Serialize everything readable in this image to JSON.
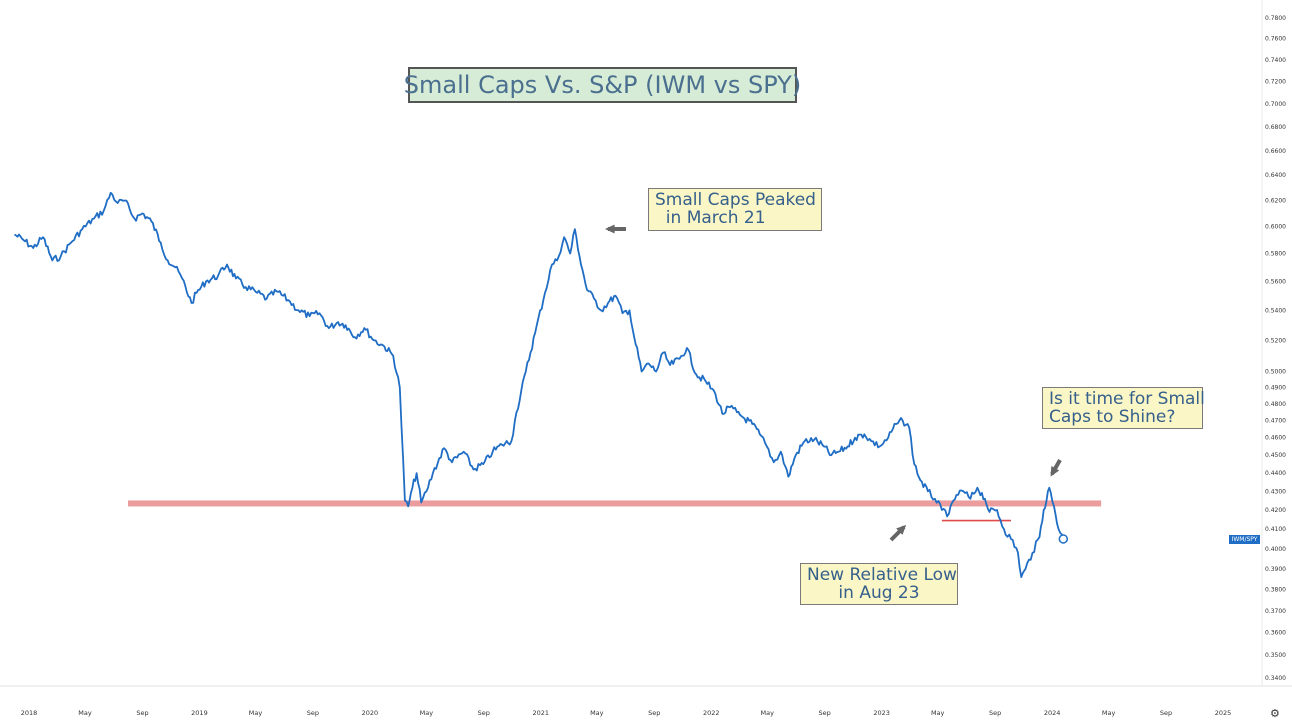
{
  "chart_data": {
    "type": "line",
    "title": "Small Caps Vs. S&P (IWM vs SPY)",
    "ticker_label": "IWM/SPY",
    "y_ticks": [
      "0.3400",
      "0.3500",
      "0.3600",
      "0.3700",
      "0.3800",
      "0.3900",
      "0.4000",
      "0.4100",
      "0.4200",
      "0.4300",
      "0.4400",
      "0.4500",
      "0.4600",
      "0.4700",
      "0.4800",
      "0.4900",
      "0.5000",
      "0.5200",
      "0.5400",
      "0.5600",
      "0.5800",
      "0.6000",
      "0.6200",
      "0.6400",
      "0.6600",
      "0.6800",
      "0.7000",
      "0.7200",
      "0.7400",
      "0.7600",
      "0.7800"
    ],
    "x_ticks": [
      {
        "label": "2018",
        "date": "2018-01-01"
      },
      {
        "label": "May",
        "date": "2018-05-01"
      },
      {
        "label": "Sep",
        "date": "2018-09-01"
      },
      {
        "label": "2019",
        "date": "2019-01-01"
      },
      {
        "label": "May",
        "date": "2019-05-01"
      },
      {
        "label": "Sep",
        "date": "2019-09-01"
      },
      {
        "label": "2020",
        "date": "2020-01-01"
      },
      {
        "label": "May",
        "date": "2020-05-01"
      },
      {
        "label": "Sep",
        "date": "2020-09-01"
      },
      {
        "label": "2021",
        "date": "2021-01-01"
      },
      {
        "label": "May",
        "date": "2021-05-01"
      },
      {
        "label": "Sep",
        "date": "2021-09-01"
      },
      {
        "label": "2022",
        "date": "2022-01-01"
      },
      {
        "label": "May",
        "date": "2022-05-01"
      },
      {
        "label": "Sep",
        "date": "2022-09-01"
      },
      {
        "label": "2023",
        "date": "2023-01-01"
      },
      {
        "label": "May",
        "date": "2023-05-01"
      },
      {
        "label": "Sep",
        "date": "2023-09-01"
      },
      {
        "label": "2024",
        "date": "2024-01-01"
      },
      {
        "label": "May",
        "date": "2024-05-01"
      },
      {
        "label": "Sep",
        "date": "2024-09-01"
      },
      {
        "label": "2025",
        "date": "2025-01-01"
      }
    ],
    "x_range": [
      "2018-01-01",
      "2025-01-01"
    ],
    "y_scale": "log",
    "series": [
      {
        "color": "#1f6dc4",
        "points": [
          [
            "2017-12-01",
            0.594
          ],
          [
            "2017-12-20",
            0.59
          ],
          [
            "2018-01-10",
            0.584
          ],
          [
            "2018-01-31",
            0.592
          ],
          [
            "2018-02-20",
            0.575
          ],
          [
            "2018-03-10",
            0.578
          ],
          [
            "2018-04-01",
            0.588
          ],
          [
            "2018-04-25",
            0.598
          ],
          [
            "2018-05-20",
            0.606
          ],
          [
            "2018-06-10",
            0.612
          ],
          [
            "2018-06-25",
            0.626
          ],
          [
            "2018-07-10",
            0.618
          ],
          [
            "2018-07-25",
            0.62
          ],
          [
            "2018-08-15",
            0.606
          ],
          [
            "2018-09-01",
            0.61
          ],
          [
            "2018-09-20",
            0.604
          ],
          [
            "2018-10-10",
            0.588
          ],
          [
            "2018-10-25",
            0.575
          ],
          [
            "2018-11-10",
            0.57
          ],
          [
            "2018-11-25",
            0.562
          ],
          [
            "2018-12-15",
            0.545
          ],
          [
            "2018-12-26",
            0.552
          ],
          [
            "2019-01-15",
            0.56
          ],
          [
            "2019-02-10",
            0.564
          ],
          [
            "2019-03-01",
            0.572
          ],
          [
            "2019-03-20",
            0.562
          ],
          [
            "2019-04-10",
            0.556
          ],
          [
            "2019-05-05",
            0.552
          ],
          [
            "2019-05-25",
            0.548
          ],
          [
            "2019-06-15",
            0.553
          ],
          [
            "2019-07-10",
            0.547
          ],
          [
            "2019-08-01",
            0.54
          ],
          [
            "2019-08-25",
            0.536
          ],
          [
            "2019-09-15",
            0.538
          ],
          [
            "2019-10-05",
            0.528
          ],
          [
            "2019-10-25",
            0.532
          ],
          [
            "2019-11-10",
            0.53
          ],
          [
            "2019-11-30",
            0.522
          ],
          [
            "2019-12-20",
            0.528
          ],
          [
            "2020-01-10",
            0.52
          ],
          [
            "2020-02-01",
            0.516
          ],
          [
            "2020-02-20",
            0.51
          ],
          [
            "2020-03-05",
            0.49
          ],
          [
            "2020-03-16",
            0.425
          ],
          [
            "2020-03-23",
            0.422
          ],
          [
            "2020-04-01",
            0.432
          ],
          [
            "2020-04-10",
            0.44
          ],
          [
            "2020-04-20",
            0.424
          ],
          [
            "2020-05-01",
            0.43
          ],
          [
            "2020-05-15",
            0.44
          ],
          [
            "2020-06-08",
            0.454
          ],
          [
            "2020-06-25",
            0.446
          ],
          [
            "2020-07-20",
            0.452
          ],
          [
            "2020-08-10",
            0.442
          ],
          [
            "2020-08-31",
            0.445
          ],
          [
            "2020-09-20",
            0.452
          ],
          [
            "2020-10-10",
            0.456
          ],
          [
            "2020-10-30",
            0.458
          ],
          [
            "2020-11-10",
            0.475
          ],
          [
            "2020-11-30",
            0.5
          ],
          [
            "2020-12-20",
            0.525
          ],
          [
            "2021-01-10",
            0.552
          ],
          [
            "2021-01-25",
            0.572
          ],
          [
            "2021-02-05",
            0.575
          ],
          [
            "2021-02-20",
            0.592
          ],
          [
            "2021-03-05",
            0.58
          ],
          [
            "2021-03-15",
            0.598
          ],
          [
            "2021-03-25",
            0.578
          ],
          [
            "2021-04-10",
            0.554
          ],
          [
            "2021-04-25",
            0.548
          ],
          [
            "2021-05-10",
            0.54
          ],
          [
            "2021-05-25",
            0.545
          ],
          [
            "2021-06-10",
            0.55
          ],
          [
            "2021-06-25",
            0.538
          ],
          [
            "2021-07-10",
            0.54
          ],
          [
            "2021-07-20",
            0.522
          ],
          [
            "2021-08-05",
            0.5
          ],
          [
            "2021-08-20",
            0.505
          ],
          [
            "2021-09-05",
            0.5
          ],
          [
            "2021-09-20",
            0.512
          ],
          [
            "2021-10-05",
            0.504
          ],
          [
            "2021-10-25",
            0.508
          ],
          [
            "2021-11-10",
            0.515
          ],
          [
            "2021-11-30",
            0.498
          ],
          [
            "2021-12-20",
            0.494
          ],
          [
            "2022-01-10",
            0.486
          ],
          [
            "2022-01-25",
            0.474
          ],
          [
            "2022-02-10",
            0.478
          ],
          [
            "2022-02-25",
            0.475
          ],
          [
            "2022-03-10",
            0.472
          ],
          [
            "2022-03-30",
            0.468
          ],
          [
            "2022-04-15",
            0.462
          ],
          [
            "2022-04-30",
            0.455
          ],
          [
            "2022-05-15",
            0.446
          ],
          [
            "2022-05-30",
            0.452
          ],
          [
            "2022-06-15",
            0.438
          ],
          [
            "2022-07-01",
            0.45
          ],
          [
            "2022-07-20",
            0.458
          ],
          [
            "2022-08-10",
            0.459
          ],
          [
            "2022-08-30",
            0.455
          ],
          [
            "2022-09-15",
            0.45
          ],
          [
            "2022-10-01",
            0.452
          ],
          [
            "2022-10-20",
            0.455
          ],
          [
            "2022-11-05",
            0.46
          ],
          [
            "2022-11-25",
            0.462
          ],
          [
            "2022-12-10",
            0.458
          ],
          [
            "2022-12-28",
            0.455
          ],
          [
            "2023-01-15",
            0.46
          ],
          [
            "2023-02-01",
            0.468
          ],
          [
            "2023-02-15",
            0.47
          ],
          [
            "2023-03-01",
            0.466
          ],
          [
            "2023-03-12",
            0.445
          ],
          [
            "2023-03-25",
            0.436
          ],
          [
            "2023-04-10",
            0.43
          ],
          [
            "2023-04-25",
            0.426
          ],
          [
            "2023-05-10",
            0.42
          ],
          [
            "2023-05-25",
            0.418
          ],
          [
            "2023-06-10",
            0.428
          ],
          [
            "2023-06-25",
            0.43
          ],
          [
            "2023-07-10",
            0.426
          ],
          [
            "2023-07-25",
            0.432
          ],
          [
            "2023-08-10",
            0.426
          ],
          [
            "2023-08-20",
            0.419
          ],
          [
            "2023-09-05",
            0.42
          ],
          [
            "2023-09-20",
            0.41
          ],
          [
            "2023-10-05",
            0.405
          ],
          [
            "2023-10-20",
            0.398
          ],
          [
            "2023-10-27",
            0.386
          ],
          [
            "2023-11-05",
            0.39
          ],
          [
            "2023-11-20",
            0.398
          ],
          [
            "2023-12-05",
            0.406
          ],
          [
            "2023-12-14",
            0.42
          ],
          [
            "2023-12-26",
            0.432
          ],
          [
            "2024-01-05",
            0.422
          ],
          [
            "2024-01-15",
            0.41
          ],
          [
            "2024-01-25",
            0.405
          ]
        ]
      }
    ],
    "hlines": [
      {
        "label": "support",
        "y": 0.4235,
        "x_start": "2018-08-01",
        "x_end": "2024-04-15",
        "color": "#e88c8c"
      },
      {
        "label": "relative-low",
        "y": 0.4145,
        "x_start": "2023-05-10",
        "x_end": "2023-10-05",
        "color": "#e04a4a"
      }
    ],
    "annotations": [
      {
        "text": "Small Caps Peaked\n  in March 21"
      },
      {
        "text": "New Relative Low\nin Aug 23"
      },
      {
        "text": "Is it time for Small\nCaps to Shine?"
      }
    ],
    "grid": false
  },
  "ui": {
    "settings_icon": "gear-icon"
  }
}
